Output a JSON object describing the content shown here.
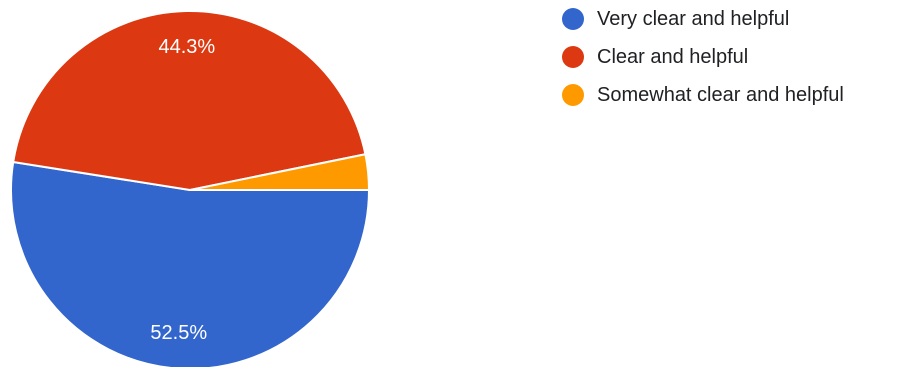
{
  "chart_data": {
    "type": "pie",
    "title": "",
    "legend_position": "right",
    "start_angle_deg": 0,
    "direction": "clockwise",
    "slices": [
      {
        "label": "Very clear and helpful",
        "percent": 52.5,
        "color": "#3366cc",
        "value_label": "52.5%"
      },
      {
        "label": "Clear and helpful",
        "percent": 44.3,
        "color": "#dc3912",
        "value_label": "44.3%"
      },
      {
        "label": "Somewhat clear and helpful",
        "percent": 3.2,
        "color": "#ff9900",
        "value_label": ""
      }
    ]
  }
}
